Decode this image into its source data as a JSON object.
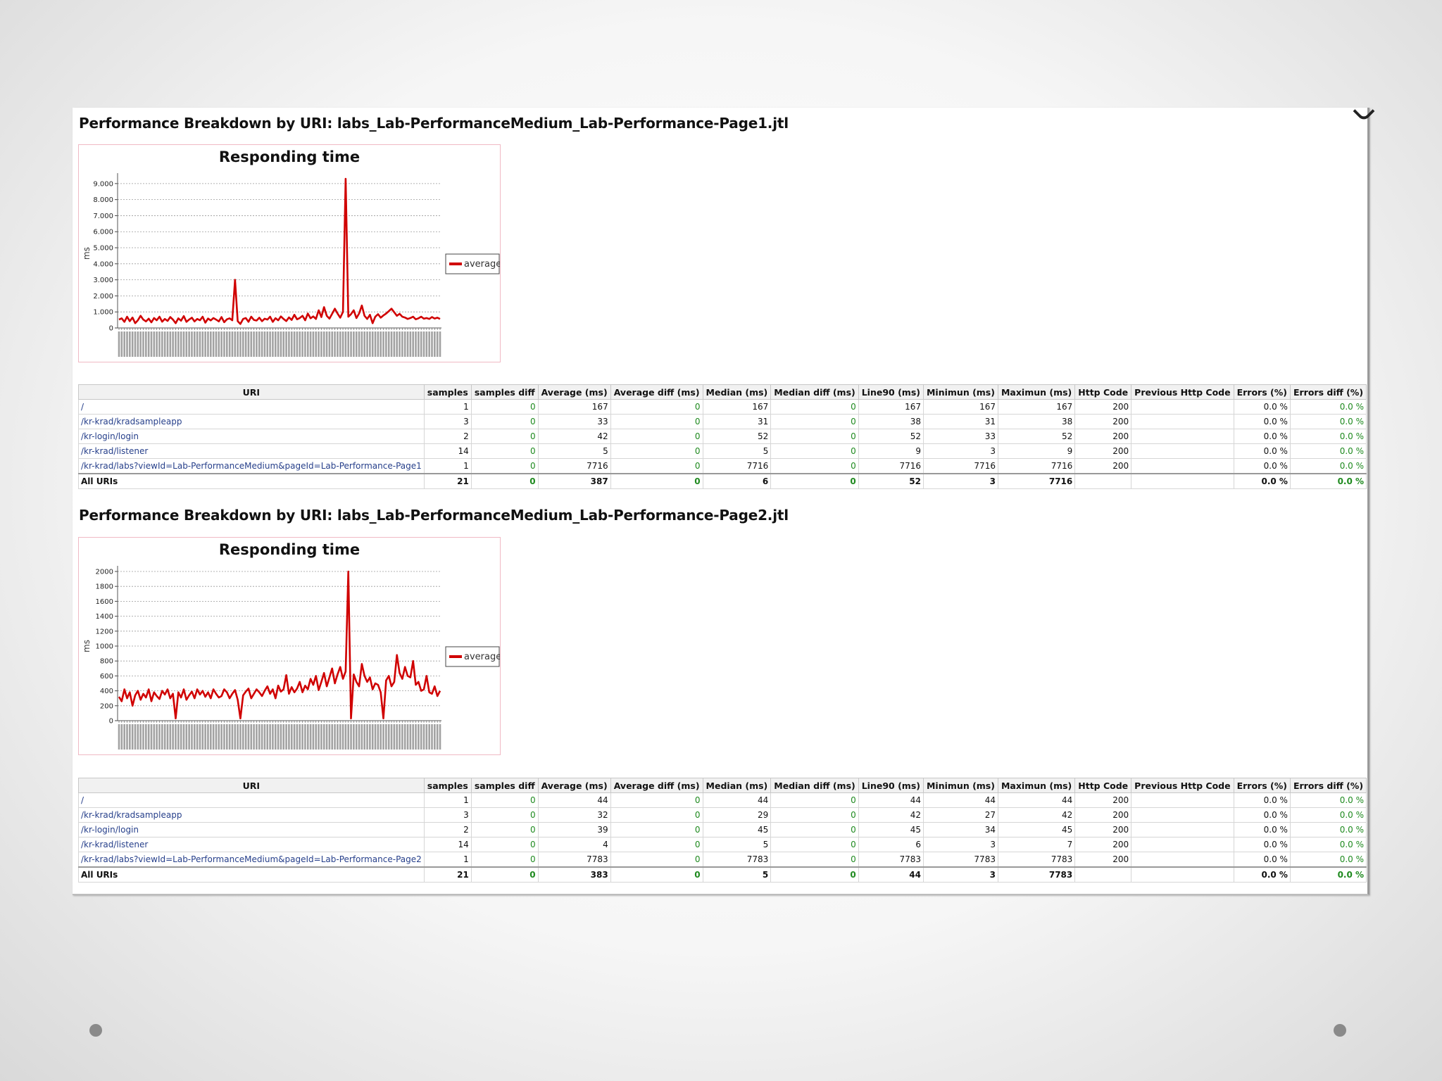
{
  "colors": {
    "series": "#d00000",
    "link": "#27408b",
    "diff": "#1f8a1f"
  },
  "legend_label": "average",
  "columns": [
    "URI",
    "samples",
    "samples diff",
    "Average (ms)",
    "Average diff (ms)",
    "Median (ms)",
    "Median diff (ms)",
    "Line90 (ms)",
    "Minimun (ms)",
    "Maximun (ms)",
    "Http Code",
    "Previous Http Code",
    "Errors (%)",
    "Errors diff (%)"
  ],
  "reports": [
    {
      "title": "Performance Breakdown by URI: labs_Lab-PerformanceMedium_Lab-Performance-Page1.jtl",
      "rows": [
        [
          "/",
          "1",
          "0",
          "167",
          "0",
          "167",
          "0",
          "167",
          "167",
          "167",
          "200",
          "",
          "0.0 %",
          "0.0 %"
        ],
        [
          "/kr-krad/kradsampleapp",
          "3",
          "0",
          "33",
          "0",
          "31",
          "0",
          "38",
          "31",
          "38",
          "200",
          "",
          "0.0 %",
          "0.0 %"
        ],
        [
          "/kr-login/login",
          "2",
          "0",
          "42",
          "0",
          "52",
          "0",
          "52",
          "33",
          "52",
          "200",
          "",
          "0.0 %",
          "0.0 %"
        ],
        [
          "/kr-krad/listener",
          "14",
          "0",
          "5",
          "0",
          "5",
          "0",
          "9",
          "3",
          "9",
          "200",
          "",
          "0.0 %",
          "0.0 %"
        ],
        [
          "/kr-krad/labs?viewId=Lab-PerformanceMedium&pageId=Lab-Performance-Page1",
          "1",
          "0",
          "7716",
          "0",
          "7716",
          "0",
          "7716",
          "7716",
          "7716",
          "200",
          "",
          "0.0 %",
          "0.0 %"
        ]
      ],
      "total": [
        "All URIs",
        "21",
        "0",
        "387",
        "0",
        "6",
        "0",
        "52",
        "3",
        "7716",
        "",
        "",
        "0.0 %",
        "0.0 %"
      ]
    },
    {
      "title": "Performance Breakdown by URI: labs_Lab-PerformanceMedium_Lab-Performance-Page2.jtl",
      "rows": [
        [
          "/",
          "1",
          "0",
          "44",
          "0",
          "44",
          "0",
          "44",
          "44",
          "44",
          "200",
          "",
          "0.0 %",
          "0.0 %"
        ],
        [
          "/kr-krad/kradsampleapp",
          "3",
          "0",
          "32",
          "0",
          "29",
          "0",
          "42",
          "27",
          "42",
          "200",
          "",
          "0.0 %",
          "0.0 %"
        ],
        [
          "/kr-login/login",
          "2",
          "0",
          "39",
          "0",
          "45",
          "0",
          "45",
          "34",
          "45",
          "200",
          "",
          "0.0 %",
          "0.0 %"
        ],
        [
          "/kr-krad/listener",
          "14",
          "0",
          "4",
          "0",
          "5",
          "0",
          "6",
          "3",
          "7",
          "200",
          "",
          "0.0 %",
          "0.0 %"
        ],
        [
          "/kr-krad/labs?viewId=Lab-PerformanceMedium&pageId=Lab-Performance-Page2",
          "1",
          "0",
          "7783",
          "0",
          "7783",
          "0",
          "7783",
          "7783",
          "7783",
          "200",
          "",
          "0.0 %",
          "0.0 %"
        ]
      ],
      "total": [
        "All URIs",
        "21",
        "0",
        "383",
        "0",
        "5",
        "0",
        "44",
        "3",
        "7783",
        "",
        "",
        "0.0 %",
        "0.0 %"
      ]
    }
  ],
  "chart_data": [
    {
      "type": "line",
      "title": "Responding time",
      "ylabel": "ms",
      "xlabel": "",
      "legend": "right",
      "grid": true,
      "ylim": [
        0,
        9300
      ],
      "yticks": [
        0,
        1000,
        2000,
        3000,
        4000,
        5000,
        6000,
        7000,
        8000,
        9000
      ],
      "ytick_labels": [
        "0",
        "1.000",
        "2.000",
        "3.000",
        "4.000",
        "5.000",
        "6.000",
        "7.000",
        "8.000",
        "9.000"
      ],
      "series": [
        {
          "name": "average",
          "values": [
            520,
            600,
            380,
            700,
            420,
            650,
            300,
            480,
            760,
            520,
            410,
            580,
            350,
            620,
            480,
            700,
            390,
            560,
            440,
            680,
            520,
            300,
            600,
            450,
            740,
            380,
            520,
            640,
            410,
            560,
            480,
            700,
            330,
            590,
            470,
            620,
            520,
            410,
            680,
            360,
            540,
            600,
            480,
            3000,
            420,
            250,
            560,
            620,
            380,
            700,
            500,
            460,
            640,
            420,
            580,
            520,
            700,
            380,
            610,
            480,
            720,
            560,
            430,
            660,
            500,
            820,
            540,
            620,
            760,
            480,
            900,
            600,
            720,
            560,
            1100,
            680,
            1300,
            760,
            580,
            880,
            1200,
            900,
            640,
            1000,
            9300,
            700,
            860,
            1100,
            620,
            900,
            1400,
            760,
            560,
            820,
            300,
            700,
            860,
            640,
            780,
            900,
            1050,
            1200,
            980,
            760,
            880,
            700,
            650,
            560,
            620,
            700,
            540,
            600,
            700,
            580,
            620,
            560,
            680,
            590,
            640,
            560
          ]
        }
      ]
    },
    {
      "type": "line",
      "title": "Responding time",
      "ylabel": "ms",
      "xlabel": "",
      "legend": "right",
      "grid": true,
      "ylim": [
        0,
        2000
      ],
      "yticks": [
        0,
        200,
        400,
        600,
        800,
        1000,
        1200,
        1400,
        1600,
        1800,
        2000
      ],
      "ytick_labels": [
        "0",
        "200",
        "400",
        "600",
        "800",
        "1000",
        "1200",
        "1400",
        "1600",
        "1800",
        "2000"
      ],
      "series": [
        {
          "name": "average",
          "values": [
            320,
            260,
            420,
            300,
            380,
            200,
            340,
            400,
            280,
            360,
            310,
            420,
            260,
            380,
            330,
            290,
            400,
            350,
            420,
            300,
            360,
            30,
            380,
            310,
            420,
            280,
            340,
            390,
            300,
            420,
            350,
            400,
            320,
            380,
            300,
            420,
            360,
            310,
            330,
            420,
            380,
            300,
            360,
            410,
            280,
            30,
            340,
            390,
            430,
            300,
            360,
            420,
            380,
            330,
            400,
            460,
            360,
            420,
            300,
            470,
            390,
            420,
            610,
            360,
            450,
            380,
            430,
            520,
            380,
            470,
            420,
            560,
            480,
            600,
            410,
            520,
            640,
            460,
            580,
            700,
            500,
            620,
            720,
            560,
            660,
            2000,
            30,
            620,
            520,
            460,
            760,
            600,
            520,
            580,
            420,
            500,
            480,
            380,
            30,
            540,
            600,
            460,
            520,
            880,
            640,
            560,
            720,
            600,
            580,
            800,
            480,
            520,
            400,
            420,
            600,
            380,
            360,
            460,
            330,
            400
          ]
        }
      ]
    }
  ]
}
